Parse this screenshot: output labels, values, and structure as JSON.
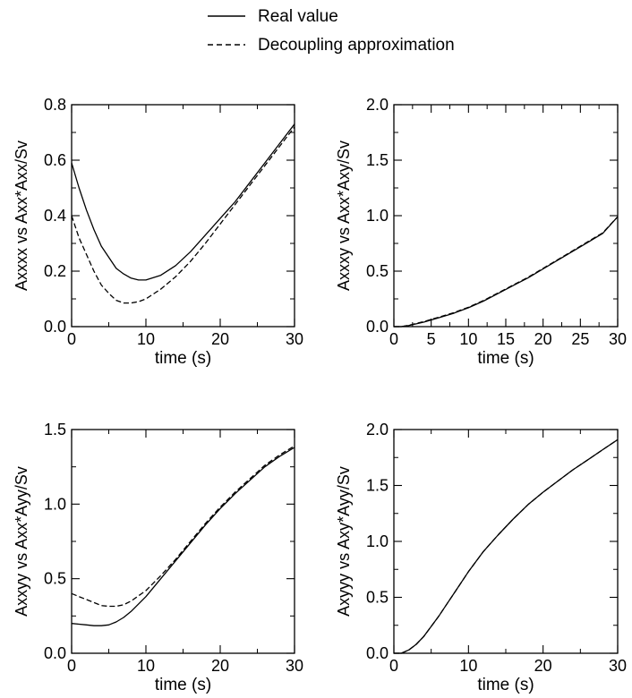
{
  "legend": {
    "entries": [
      {
        "label": "Real value",
        "style": "solid"
      },
      {
        "label": "Decoupling approximation",
        "style": "dashed"
      }
    ]
  },
  "colors": {
    "line": "#000000",
    "background": "#ffffff"
  },
  "chart_data": [
    {
      "type": "line",
      "xlabel": "time (s)",
      "ylabel": "Axxxx vs Axx*Axx/Sv",
      "xlim": [
        0,
        30
      ],
      "ylim": [
        0,
        0.8
      ],
      "xticks": [
        0,
        10,
        20,
        30
      ],
      "yticks": [
        0.0,
        0.2,
        0.4,
        0.6,
        0.8
      ],
      "xtick_labels": [
        "0",
        "10",
        "20",
        "30"
      ],
      "ytick_labels": [
        "0.0",
        "0.2",
        "0.4",
        "0.6",
        "0.8"
      ],
      "series": [
        {
          "name": "Real value",
          "style": "solid",
          "x": [
            0,
            1,
            2,
            3,
            4,
            5,
            6,
            7,
            8,
            9,
            10,
            12,
            14,
            16,
            18,
            20,
            22,
            24,
            26,
            28,
            30
          ],
          "y": [
            0.59,
            0.5,
            0.42,
            0.35,
            0.29,
            0.25,
            0.21,
            0.19,
            0.175,
            0.168,
            0.168,
            0.185,
            0.22,
            0.27,
            0.33,
            0.39,
            0.45,
            0.52,
            0.59,
            0.66,
            0.73
          ]
        },
        {
          "name": "Decoupling approximation",
          "style": "dashed",
          "x": [
            0,
            1,
            2,
            3,
            4,
            5,
            6,
            7,
            8,
            9,
            10,
            12,
            14,
            16,
            18,
            20,
            22,
            24,
            26,
            28,
            30
          ],
          "y": [
            0.4,
            0.32,
            0.26,
            0.2,
            0.15,
            0.12,
            0.095,
            0.085,
            0.085,
            0.09,
            0.1,
            0.135,
            0.18,
            0.235,
            0.3,
            0.37,
            0.44,
            0.51,
            0.58,
            0.65,
            0.72
          ]
        }
      ]
    },
    {
      "type": "line",
      "xlabel": "time (s)",
      "ylabel": "Axxxy vs Axx*Axy/Sv",
      "xlim": [
        0,
        30
      ],
      "ylim": [
        0,
        2.0
      ],
      "xticks": [
        0,
        5,
        10,
        15,
        20,
        25,
        30
      ],
      "yticks": [
        0.0,
        0.5,
        1.0,
        1.5,
        2.0
      ],
      "xtick_labels": [
        "0",
        "5",
        "10",
        "15",
        "20",
        "25",
        "30"
      ],
      "ytick_labels": [
        "0.0",
        "0.5",
        "1.0",
        "1.5",
        "2.0"
      ],
      "series": [
        {
          "name": "Real value",
          "style": "solid",
          "x": [
            0,
            1,
            2,
            4,
            6,
            8,
            10,
            12,
            14,
            16,
            18,
            20,
            22,
            24,
            26,
            28,
            30
          ],
          "y": [
            0.0,
            0.0,
            0.01,
            0.04,
            0.08,
            0.12,
            0.17,
            0.23,
            0.3,
            0.37,
            0.44,
            0.52,
            0.6,
            0.68,
            0.76,
            0.84,
            0.99
          ]
        },
        {
          "name": "Decoupling approximation",
          "style": "dashed",
          "x": [
            0,
            1,
            2,
            4,
            6,
            8,
            10,
            12,
            14,
            16,
            18,
            20,
            22,
            24,
            26,
            28,
            30
          ],
          "y": [
            0.0,
            0.0,
            0.012,
            0.045,
            0.085,
            0.125,
            0.175,
            0.235,
            0.305,
            0.375,
            0.445,
            0.525,
            0.605,
            0.685,
            0.765,
            0.845,
            0.99
          ]
        }
      ]
    },
    {
      "type": "line",
      "xlabel": "time (s)",
      "ylabel": "Axxyy vs Axx*Ayy/Sv",
      "xlim": [
        0,
        30
      ],
      "ylim": [
        0,
        1.5
      ],
      "xticks": [
        0,
        10,
        20,
        30
      ],
      "yticks": [
        0.0,
        0.5,
        1.0,
        1.5
      ],
      "xtick_labels": [
        "0",
        "10",
        "20",
        "30"
      ],
      "ytick_labels": [
        "0.0",
        "0.5",
        "1.0",
        "1.5"
      ],
      "series": [
        {
          "name": "Real value",
          "style": "solid",
          "x": [
            0,
            1,
            2,
            3,
            4,
            5,
            6,
            7,
            8,
            10,
            12,
            14,
            16,
            18,
            20,
            22,
            24,
            26,
            28,
            30
          ],
          "y": [
            0.2,
            0.195,
            0.19,
            0.185,
            0.185,
            0.19,
            0.21,
            0.24,
            0.28,
            0.38,
            0.5,
            0.62,
            0.74,
            0.86,
            0.97,
            1.07,
            1.16,
            1.25,
            1.32,
            1.38
          ]
        },
        {
          "name": "Decoupling approximation",
          "style": "dashed",
          "x": [
            0,
            1,
            2,
            3,
            4,
            5,
            6,
            7,
            8,
            10,
            12,
            14,
            16,
            18,
            20,
            22,
            24,
            26,
            28,
            30
          ],
          "y": [
            0.4,
            0.38,
            0.36,
            0.34,
            0.32,
            0.315,
            0.315,
            0.325,
            0.35,
            0.42,
            0.52,
            0.63,
            0.75,
            0.87,
            0.98,
            1.08,
            1.17,
            1.26,
            1.33,
            1.39
          ]
        }
      ]
    },
    {
      "type": "line",
      "xlabel": "time (s)",
      "ylabel": "Axyyy vs Axy*Ayy/Sv",
      "xlim": [
        0,
        30
      ],
      "ylim": [
        0,
        2.0
      ],
      "xticks": [
        0,
        10,
        20,
        30
      ],
      "yticks": [
        0.0,
        0.5,
        1.0,
        1.5,
        2.0
      ],
      "xtick_labels": [
        "0",
        "10",
        "20",
        "30"
      ],
      "ytick_labels": [
        "0.0",
        "0.5",
        "1.0",
        "1.5",
        "2.0"
      ],
      "series": [
        {
          "name": "Real value",
          "style": "solid",
          "x": [
            0,
            1,
            2,
            3,
            4,
            5,
            6,
            7,
            8,
            10,
            12,
            14,
            16,
            18,
            20,
            22,
            24,
            26,
            28,
            30
          ],
          "y": [
            0.0,
            0.0,
            0.03,
            0.08,
            0.15,
            0.24,
            0.33,
            0.43,
            0.53,
            0.73,
            0.91,
            1.06,
            1.2,
            1.33,
            1.44,
            1.54,
            1.64,
            1.73,
            1.82,
            1.91
          ]
        },
        {
          "name": "Decoupling approximation",
          "style": "dashed",
          "x": [
            0,
            1,
            2,
            3,
            4,
            5,
            6,
            7,
            8,
            10,
            12,
            14,
            16,
            18,
            20,
            22,
            24,
            26,
            28,
            30
          ],
          "y": [
            0.0,
            0.0,
            0.03,
            0.08,
            0.15,
            0.24,
            0.33,
            0.43,
            0.53,
            0.73,
            0.91,
            1.06,
            1.2,
            1.33,
            1.44,
            1.54,
            1.64,
            1.73,
            1.82,
            1.91
          ]
        }
      ]
    }
  ]
}
